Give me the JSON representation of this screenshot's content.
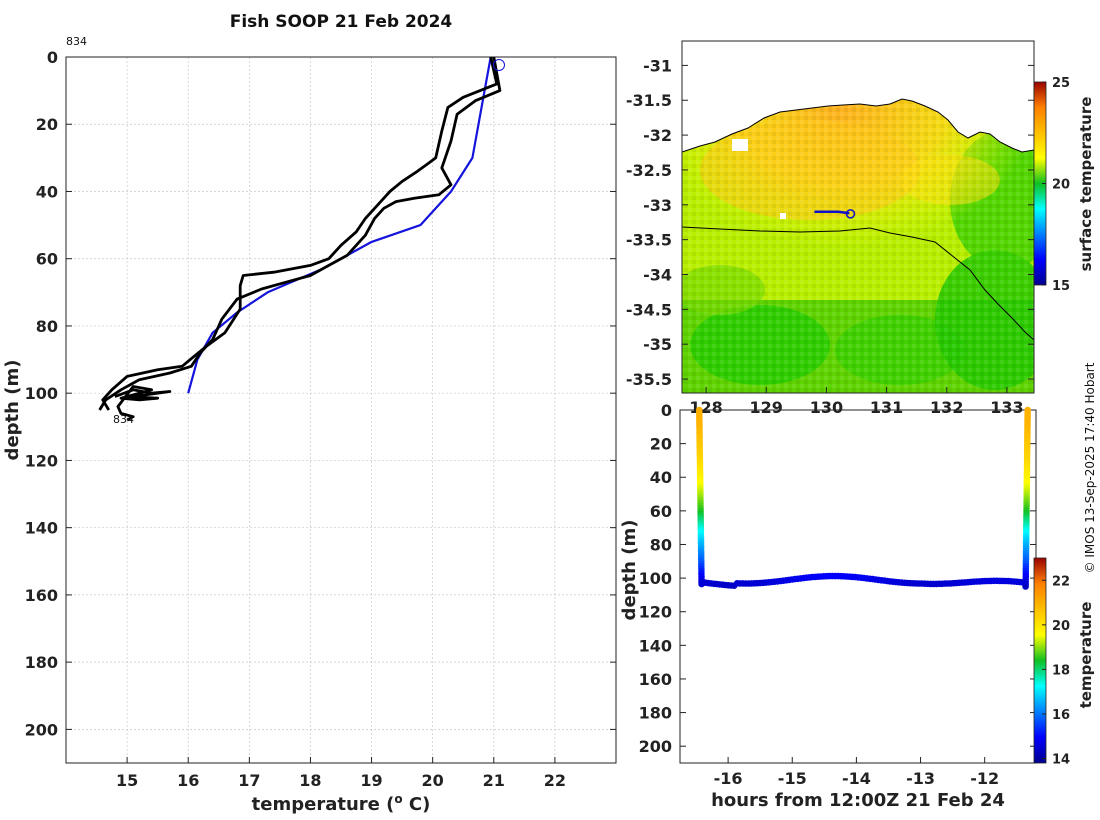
{
  "title": "Fish SOOP 21 Feb 2024",
  "copyright": "© IMOS 13-Sep-2025 17:40 Hobart",
  "chart_data": [
    {
      "type": "line",
      "name": "temperature-profile",
      "xlabel": "temperature (",
      "xlabel_sup": "o",
      "xlabel_end": " C)",
      "ylabel": "depth (m)",
      "xlim": [
        14,
        23
      ],
      "ylim": [
        210,
        0
      ],
      "xticks": [
        15,
        16,
        17,
        18,
        19,
        20,
        21,
        22
      ],
      "yticks": [
        0,
        20,
        40,
        60,
        80,
        100,
        120,
        140,
        160,
        180,
        200
      ],
      "annotation_top": "834",
      "annotation_bottom": "834",
      "series": [
        {
          "name": "reference profile",
          "color": "#1414dc",
          "points": [
            [
              20.95,
              0
            ],
            [
              20.85,
              10
            ],
            [
              20.75,
              20
            ],
            [
              20.65,
              30
            ],
            [
              20.3,
              40
            ],
            [
              19.8,
              50
            ],
            [
              19.0,
              55
            ],
            [
              18.2,
              63
            ],
            [
              17.3,
              70
            ],
            [
              16.8,
              76
            ],
            [
              16.4,
              82
            ],
            [
              16.15,
              90
            ],
            [
              16.0,
              100
            ]
          ]
        },
        {
          "name": "measured profile A",
          "color": "#000000",
          "points": [
            [
              20.95,
              0
            ],
            [
              21.05,
              8
            ],
            [
              20.5,
              12
            ],
            [
              20.25,
              15
            ],
            [
              20.15,
              22
            ],
            [
              20.05,
              30
            ],
            [
              19.9,
              32
            ],
            [
              19.75,
              34
            ],
            [
              19.5,
              37
            ],
            [
              19.3,
              40
            ],
            [
              19.1,
              44
            ],
            [
              18.9,
              48
            ],
            [
              18.75,
              52
            ],
            [
              18.5,
              56
            ],
            [
              18.3,
              60
            ],
            [
              18.0,
              62
            ],
            [
              17.4,
              64
            ],
            [
              16.9,
              65
            ],
            [
              16.85,
              68
            ],
            [
              16.85,
              75
            ],
            [
              16.6,
              82
            ],
            [
              16.3,
              86
            ],
            [
              16.1,
              89
            ],
            [
              15.9,
              92
            ],
            [
              15.5,
              93
            ],
            [
              15.0,
              95
            ],
            [
              14.75,
              99
            ],
            [
              14.6,
              102
            ],
            [
              14.7,
              105
            ]
          ]
        },
        {
          "name": "measured profile B",
          "color": "#000000",
          "points": [
            [
              21.0,
              0
            ],
            [
              21.1,
              10
            ],
            [
              20.7,
              13
            ],
            [
              20.4,
              17
            ],
            [
              20.3,
              25
            ],
            [
              20.15,
              33
            ],
            [
              20.3,
              38
            ],
            [
              20.1,
              41
            ],
            [
              19.7,
              42
            ],
            [
              19.4,
              43
            ],
            [
              19.2,
              45
            ],
            [
              19.05,
              48
            ],
            [
              18.9,
              53
            ],
            [
              18.6,
              59
            ],
            [
              18.3,
              62
            ],
            [
              18.0,
              65
            ],
            [
              17.6,
              67
            ],
            [
              17.2,
              69
            ],
            [
              16.8,
              72
            ],
            [
              16.55,
              78
            ],
            [
              16.4,
              84
            ],
            [
              16.2,
              88
            ],
            [
              16.05,
              92
            ],
            [
              15.7,
              94
            ],
            [
              15.2,
              96
            ],
            [
              14.9,
              99
            ],
            [
              14.65,
              102
            ],
            [
              14.55,
              105
            ]
          ]
        },
        {
          "name": "bottom cluster",
          "color": "#000000",
          "points": [
            [
              14.8,
              101
            ],
            [
              15.1,
              99
            ],
            [
              15.4,
              100
            ],
            [
              15.7,
              99.5
            ],
            [
              15.3,
              100.5
            ],
            [
              15.0,
              101
            ],
            [
              15.5,
              101.5
            ],
            [
              15.2,
              102
            ],
            [
              14.9,
              101.5
            ],
            [
              15.4,
              99
            ],
            [
              15.1,
              98
            ],
            [
              14.85,
              104
            ],
            [
              14.9,
              106
            ],
            [
              15.1,
              107
            ],
            [
              15.0,
              108
            ]
          ]
        }
      ]
    },
    {
      "type": "heatmap",
      "name": "surface-temperature-map",
      "yticks": [
        -31,
        -31.5,
        -32,
        -32.5,
        -33,
        -33.5,
        -34,
        -34.5,
        -35,
        -35.5
      ],
      "xticks": [
        128,
        129,
        130,
        131,
        132,
        133
      ],
      "xlim": [
        127.6,
        133.45
      ],
      "ylim": [
        -35.7,
        -30.65
      ],
      "colorbar_label": "surface temperature",
      "colorbar_ticks": [
        15,
        20,
        25
      ],
      "colorbar_range": [
        15,
        25
      ],
      "track": [
        [
          129.8,
          -33.1
        ],
        [
          130.0,
          -33.1
        ],
        [
          130.2,
          -33.1
        ],
        [
          130.38,
          -33.12
        ]
      ],
      "track_end": [
        130.4,
        -33.13
      ]
    },
    {
      "type": "scatter",
      "name": "depth-time-section",
      "xlabel": "hours from 12:00Z 21 Feb 24",
      "ylabel": "depth (m)",
      "xlim": [
        -16.75,
        -11.2
      ],
      "ylim": [
        210,
        0
      ],
      "xticks": [
        -16,
        -15,
        -14,
        -13,
        -12
      ],
      "yticks": [
        0,
        20,
        40,
        60,
        80,
        100,
        120,
        140,
        160,
        180,
        200
      ],
      "colorbar_label": "temperature",
      "colorbar_ticks": [
        14,
        16,
        18,
        20,
        22
      ],
      "colorbar_range": [
        13.8,
        23.0
      ]
    }
  ]
}
